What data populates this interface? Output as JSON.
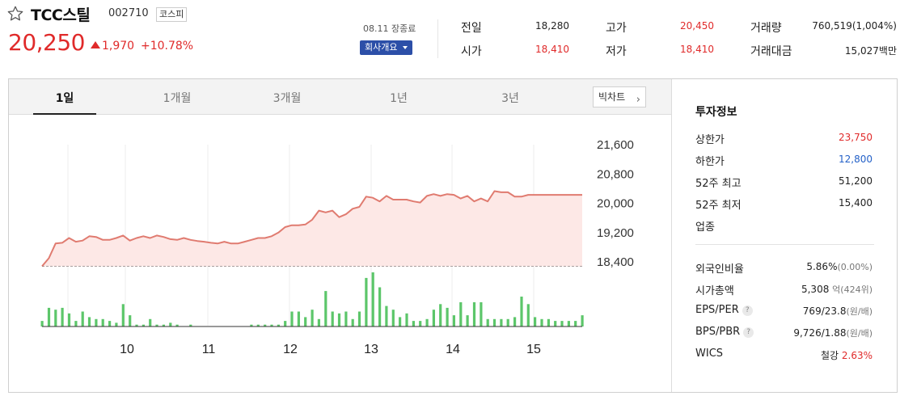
{
  "stock": {
    "name": "TCC스틸",
    "code": "002710",
    "market": "코스피",
    "price": "20,250",
    "change": "1,970",
    "change_pct": "+10.78%",
    "direction": "up",
    "up_color": "#e02a2a"
  },
  "session": {
    "date_status": "08.11 장종료",
    "company_button": "회사개요"
  },
  "stats": {
    "prev_close_label": "전일",
    "prev_close": "18,280",
    "open_label": "시가",
    "open": "18,410",
    "high_label": "고가",
    "high": "20,450",
    "low_label": "저가",
    "low": "18,410",
    "volume_label": "거래량",
    "volume": "760,519(1,004%)",
    "trade_value_label": "거래대금",
    "trade_value": "15,027백만"
  },
  "tabs": [
    "1일",
    "1개월",
    "3개월",
    "1년",
    "3년"
  ],
  "active_tab": "1일",
  "bigchart_label": "빅차트",
  "invest": {
    "title": "투자정보",
    "upper_limit_label": "상한가",
    "upper_limit": "23,750",
    "lower_limit_label": "하한가",
    "lower_limit": "12,800",
    "high52_label": "52주 최고",
    "high52": "51,200",
    "low52_label": "52주 최저",
    "low52": "15,400",
    "industry_label": "업종",
    "foreign_ratio_label": "외국인비율",
    "foreign_ratio": "5.86%",
    "foreign_ratio_chg": "(0.00%)",
    "market_cap_label": "시가총액",
    "market_cap": "5,308",
    "market_cap_unit": "억(424위)",
    "eps_per_label": "EPS/PER",
    "eps_per": "769/23.8",
    "eps_per_unit": "(원/배)",
    "bps_pbr_label": "BPS/PBR",
    "bps_pbr": "9,726/1.88",
    "bps_pbr_unit": "(원/배)",
    "wics_label": "WICS",
    "wics_sector": "철강",
    "wics_pct": "2.63%"
  },
  "chart_data": {
    "type": "line",
    "title": "",
    "ylim": [
      18400,
      21600
    ],
    "y_ticks": [
      "21,600",
      "20,800",
      "20,000",
      "19,200",
      "18,400"
    ],
    "y_tick_values": [
      21600,
      20800,
      20000,
      19200,
      18400
    ],
    "x_ticks": [
      "10",
      "11",
      "12",
      "13",
      "14",
      "15"
    ],
    "prev_close": 18280,
    "series": [
      {
        "values": [
          18280,
          18500,
          18900,
          18920,
          19050,
          18950,
          18980,
          19100,
          19080,
          19000,
          19000,
          19050,
          19120,
          18980,
          19050,
          19100,
          19050,
          19120,
          19080,
          19020,
          19000,
          19050,
          19000,
          18970,
          18950,
          18920,
          18900,
          18950,
          18900,
          18900,
          18950,
          19000,
          19050,
          19050,
          19100,
          19200,
          19350,
          19400,
          19400,
          19420,
          19550,
          19800,
          19750,
          19800,
          19620,
          19700,
          19850,
          19900,
          20180,
          20150,
          20050,
          20200,
          20100,
          20100,
          20100,
          20050,
          20020,
          20200,
          20250,
          20200,
          20250,
          20230,
          20130,
          20200,
          20050,
          20130,
          20050,
          20330,
          20300,
          20300,
          20180,
          20180,
          20230,
          20230,
          20230,
          20230,
          20230,
          20230,
          20230,
          20230,
          20230
        ],
        "color": "#e07b70"
      }
    ],
    "volume": [
      3,
      10,
      9,
      10,
      7,
      3,
      8,
      5,
      4,
      4,
      3,
      2,
      12,
      6,
      1,
      1,
      4,
      1,
      1,
      2,
      1,
      0,
      1,
      0,
      0,
      0,
      0,
      0,
      0,
      0,
      0,
      1,
      1,
      1,
      1,
      1,
      3,
      8,
      8,
      5,
      9,
      4,
      19,
      8,
      7,
      8,
      4,
      8,
      26,
      29,
      21,
      11,
      9,
      5,
      7,
      3,
      3,
      4,
      9,
      12,
      10,
      6,
      13,
      6,
      13,
      13,
      4,
      4,
      4,
      4,
      5,
      16,
      12,
      5,
      4,
      4,
      3,
      3,
      3,
      3,
      6
    ],
    "volume_color": "#5cc66a",
    "grid": true
  }
}
